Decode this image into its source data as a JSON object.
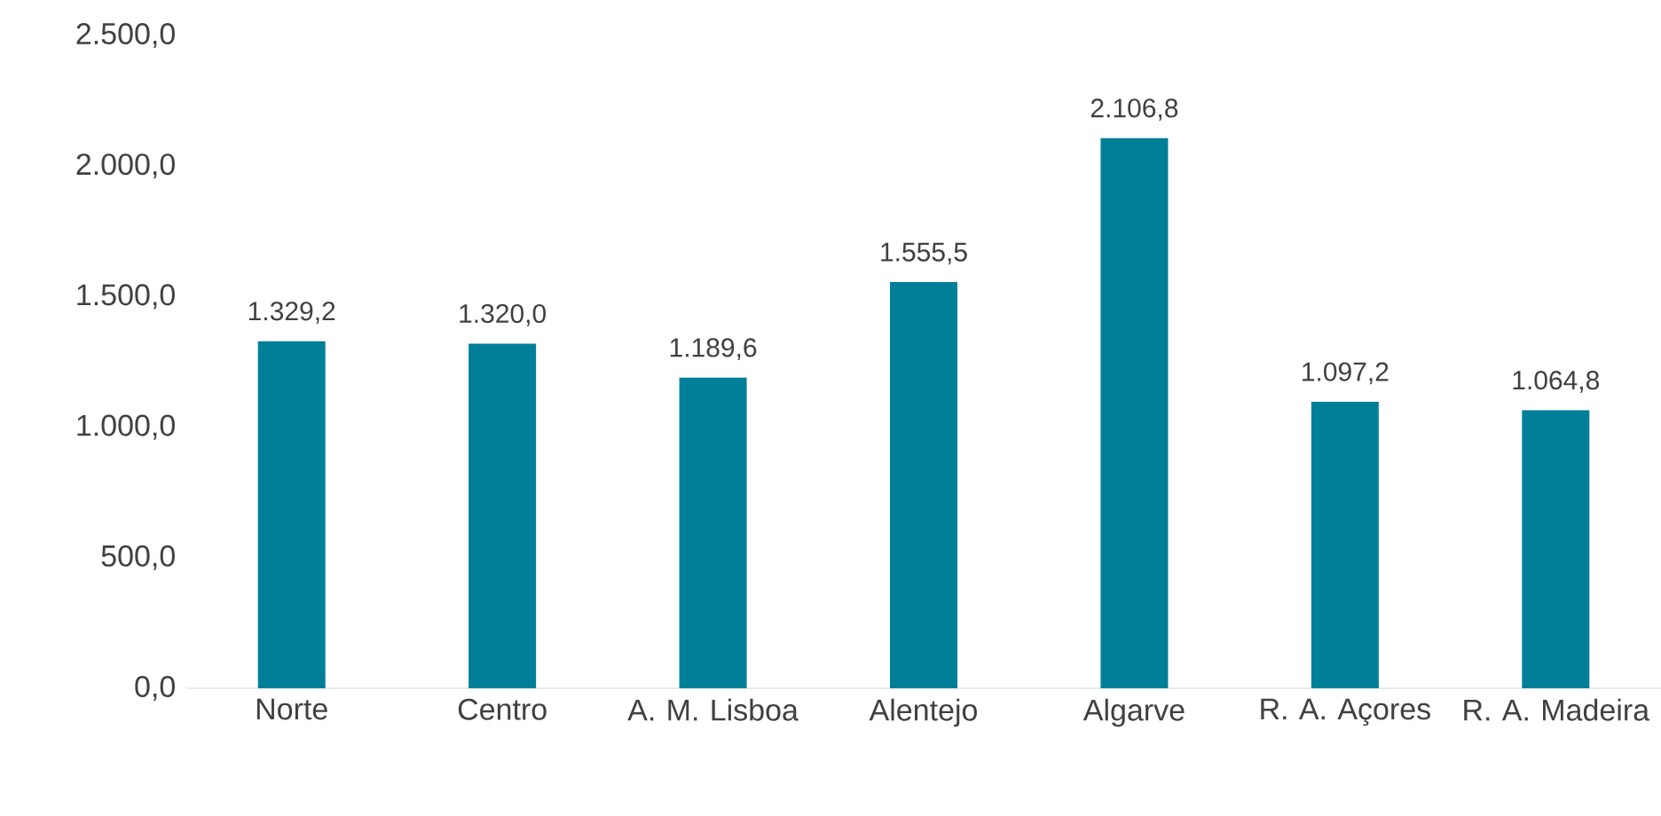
{
  "chart_data": {
    "type": "bar",
    "categories": [
      "Norte",
      "Centro",
      "A. M. Lisboa",
      "Alentejo",
      "Algarve",
      "R. A. Açores",
      "R. A. Madeira"
    ],
    "values": [
      1329.2,
      1320.0,
      1189.6,
      1555.5,
      2106.8,
      1097.2,
      1064.8
    ],
    "value_labels": [
      "1.329,2",
      "1.320,0",
      "1.189,6",
      "1.555,5",
      "2.106,8",
      "1.097,2",
      "1.064,8"
    ],
    "color": "#007f99",
    "ylim": [
      0,
      2500
    ],
    "yticks": [
      {
        "value": 0,
        "label": "0,0"
      },
      {
        "value": 500,
        "label": "500,0"
      },
      {
        "value": 1000,
        "label": "1.000,0"
      },
      {
        "value": 1500,
        "label": "1.500,0"
      },
      {
        "value": 2000,
        "label": "2.000,0"
      },
      {
        "value": 2500,
        "label": "2.500,0"
      }
    ]
  }
}
